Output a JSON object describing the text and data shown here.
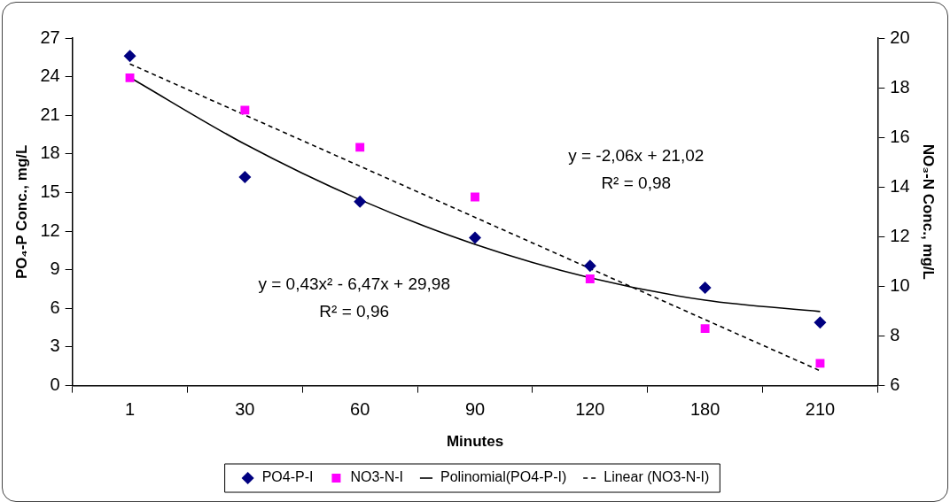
{
  "chart_data": {
    "type": "scatter",
    "xlabel": "Minutes",
    "ylabel": "PO₄-P Conc., mg/L",
    "y2label": "NO₃-N Conc., mg/L",
    "categories": [
      "1",
      "30",
      "60",
      "90",
      "120",
      "180",
      "210"
    ],
    "series": [
      {
        "name": "PO4-P-I",
        "marker": "diamond",
        "color": "#000080",
        "values": [
          25.6,
          16.2,
          14.3,
          11.5,
          9.3,
          7.6,
          4.9
        ]
      },
      {
        "name": "NO3-N-I",
        "marker": "square",
        "color": "#ff00ff",
        "axis": "y2",
        "values": [
          18.4,
          17.1,
          15.6,
          13.6,
          10.3,
          8.3,
          6.9
        ]
      },
      {
        "name": "Polinomial(PO4-P-I)",
        "type": "line",
        "marker": "none",
        "line_style": "solid",
        "color": "#000000",
        "values": [
          23.94,
          18.76,
          14.44,
          10.98,
          8.38,
          6.64,
          5.76
        ]
      },
      {
        "name": "Linear (NO3-N-I)",
        "type": "line",
        "marker": "none",
        "line_style": "dashed",
        "color": "#000000",
        "axis": "y2",
        "values": [
          18.96,
          16.9,
          14.84,
          12.78,
          10.72,
          8.66,
          6.6
        ]
      }
    ],
    "ylim": [
      0,
      27
    ],
    "yticks": [
      0,
      3,
      6,
      9,
      12,
      15,
      18,
      21,
      24,
      27
    ],
    "y2lim": [
      6,
      20
    ],
    "y2ticks": [
      6,
      8,
      10,
      12,
      14,
      16,
      18,
      20
    ],
    "annotations": [
      "y = 0,43x² - 6,47x + 29,98",
      "R² = 0,96",
      "y = -2,06x + 21,02",
      "R² = 0,98"
    ],
    "grid": false,
    "legend": "bottom"
  }
}
